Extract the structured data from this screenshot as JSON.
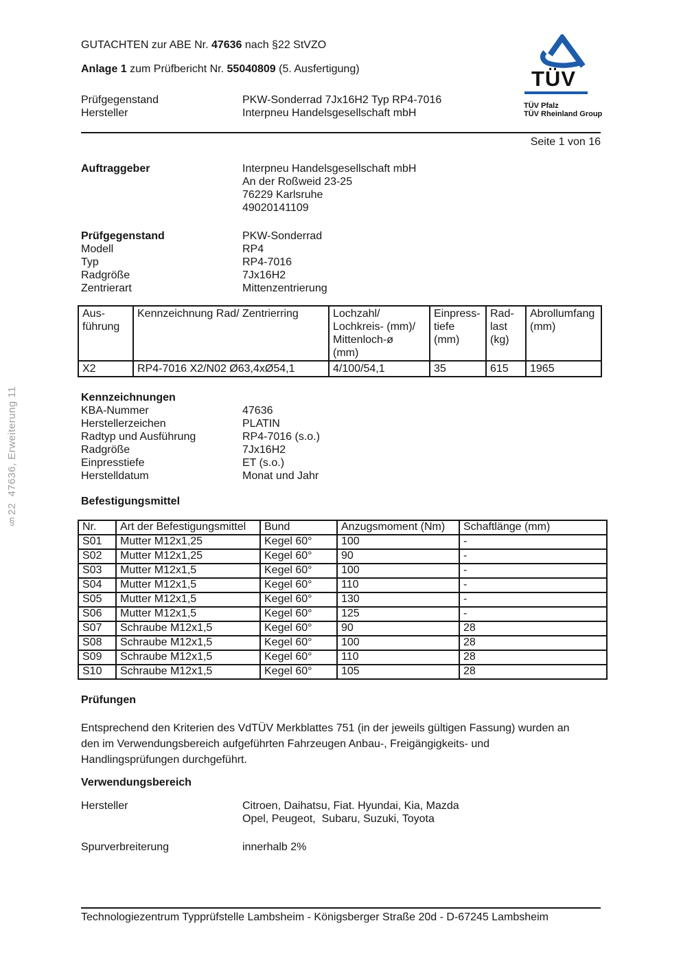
{
  "margin_note": "§22  47636, Erweiterung 11",
  "page": {
    "number_label": "Seite 1 von 16"
  },
  "header": {
    "gutachten_pre": "GUTACHTEN zur ABE Nr. ",
    "gutachten_number": "47636",
    "gutachten_post": " nach §22 StVZO",
    "anlage_bold": "Anlage 1",
    "anlage_mid": " zum Prüfbericht Nr. ",
    "anlage_number": "55040809",
    "anlage_post": " (5. Ausfertigung)",
    "pruefgegenstand_label": "Prüfgegenstand",
    "pruefgegenstand_value": "PKW-Sonderrad 7Jx16H2 Typ RP4-7016",
    "hersteller_label": "Hersteller",
    "hersteller_value": "Interpneu Handelsgesellschaft mbH"
  },
  "logo": {
    "tuv_text": "TÜV",
    "line1": "TÜV Pfalz",
    "line2": "TÜV Rheinland Group",
    "blue": "#1e5cab"
  },
  "auftraggeber": {
    "label": "Auftraggeber",
    "lines": [
      "Interpneu Handelsgesellschaft mbH",
      "An der Roßweid 23-25",
      "76229 Karlsruhe",
      "49020141109"
    ]
  },
  "pruefgegenstand": {
    "label": "Prüfgegenstand",
    "value": "PKW-Sonderrad",
    "rows": [
      {
        "label": "Modell",
        "value": "RP4"
      },
      {
        "label": "Typ",
        "value": "RP4-7016"
      },
      {
        "label": "Radgröße",
        "value": "7Jx16H2"
      },
      {
        "label": "Zentrierart",
        "value": "Mittenzentrierung"
      }
    ]
  },
  "ausfuehrung_table": {
    "headers": [
      "Aus-\nführung",
      "Kennzeichnung Rad/ Zentrierring",
      "Lochzahl/\nLochkreis- (mm)/\nMittenloch-ø\n(mm)",
      "Einpress-\ntiefe\n(mm)",
      "Rad-\nlast\n(kg)",
      "Abrollumfang\n(mm)"
    ],
    "rows": [
      [
        "X2",
        "RP4-7016 X2/N02 Ø63,4xØ54,1",
        "4/100/54,1",
        "35",
        "615",
        "1965"
      ]
    ]
  },
  "kennzeichnungen": {
    "heading": "Kennzeichnungen",
    "rows": [
      {
        "label": "KBA-Nummer",
        "value": "47636"
      },
      {
        "label": "Herstellerzeichen",
        "value": "PLATIN"
      },
      {
        "label": "Radtyp und Ausführung",
        "value": "RP4-7016 (s.o.)"
      },
      {
        "label": "Radgröße",
        "value": "7Jx16H2"
      },
      {
        "label": "Einpresstiefe",
        "value": "ET (s.o.)"
      },
      {
        "label": "Herstelldatum",
        "value": "Monat und Jahr"
      }
    ]
  },
  "befestigungsmittel": {
    "heading": "Befestigungsmittel",
    "table": {
      "headers": [
        "Nr.",
        "Art der Befestigungsmittel",
        "Bund",
        "Anzugsmoment (Nm)",
        "Schaftlänge (mm)"
      ],
      "rows": [
        [
          "S01",
          "Mutter M12x1,25",
          "Kegel 60°",
          "100",
          "-"
        ],
        [
          "S02",
          "Mutter M12x1,25",
          "Kegel 60°",
          "90",
          "-"
        ],
        [
          "S03",
          "Mutter M12x1,5",
          "Kegel 60°",
          "100",
          "-"
        ],
        [
          "S04",
          "Mutter M12x1,5",
          "Kegel 60°",
          "110",
          "-"
        ],
        [
          "S05",
          "Mutter M12x1,5",
          "Kegel 60°",
          "130",
          "-"
        ],
        [
          "S06",
          "Mutter M12x1,5",
          "Kegel 60°",
          "125",
          "-"
        ],
        [
          "S07",
          "Schraube M12x1,5",
          "Kegel 60°",
          "90",
          "28"
        ],
        [
          "S08",
          "Schraube M12x1,5",
          "Kegel 60°",
          "100",
          "28"
        ],
        [
          "S09",
          "Schraube M12x1,5",
          "Kegel 60°",
          "110",
          "28"
        ],
        [
          "S10",
          "Schraube M12x1,5",
          "Kegel 60°",
          "105",
          "28"
        ]
      ]
    }
  },
  "pruefungen": {
    "heading": "Prüfungen",
    "text": "Entsprechend den Kriterien des VdTÜV Merkblattes 751 (in der jeweils gültigen Fassung) wurden an\nden im Verwendungsbereich aufgeführten Fahrzeugen Anbau-, Freigängigkeits- und\nHandlingsprüfungen durchgeführt."
  },
  "verwendungsbereich": {
    "heading": "Verwendungsbereich",
    "hersteller_label": "Hersteller",
    "hersteller_lines": [
      "Citroen, Daihatsu, Fiat. Hyundai, Kia, Mazda",
      "Opel, Peugeot,  Subaru, Suzuki, Toyota"
    ],
    "spur_label": "Spurverbreiterung",
    "spur_value": "innerhalb 2%"
  },
  "footer": {
    "text": "Technologiezentrum Typprüfstelle Lambsheim - Königsberger Straße 20d - D-67245 Lambsheim"
  }
}
